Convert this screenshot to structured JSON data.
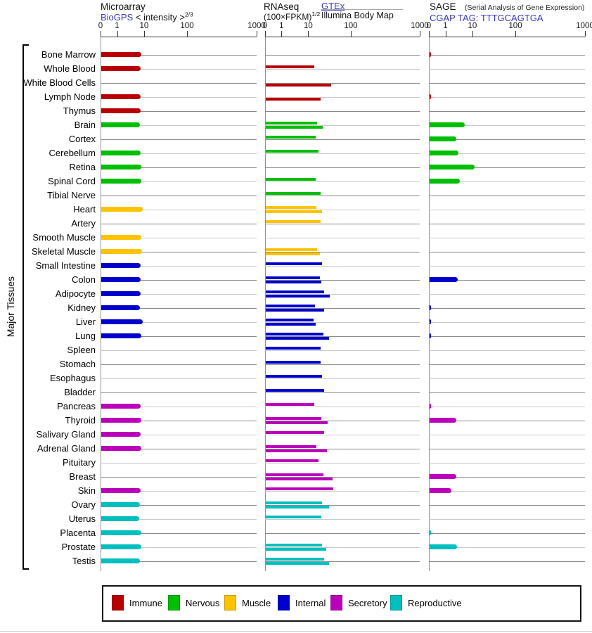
{
  "header": {
    "microarray": {
      "title": "Microarray",
      "source": "BioGPS",
      "scale": " < intensity >",
      "scale_exp": "2/3"
    },
    "rnaseq": {
      "title": "RNAseq",
      "scale": "(100×FPKM)",
      "scale_exp": "1/2",
      "source_top": "GTEx",
      "source_bottom": "Illumina Body Map"
    },
    "sage": {
      "title": "SAGE",
      "subtitle": "(Serial Analysis of Gene Expression)",
      "source": "CGAP TAG: TTTGCAGTGA"
    }
  },
  "sidebar": {
    "label": "Major Tissues"
  },
  "chart_data": {
    "type": "bar",
    "orientation": "horizontal",
    "scale_note": "nonlinear compressed log scale, identical ticks per panel",
    "panels": [
      {
        "id": "microarray",
        "label": "Microarray",
        "source": "BioGPS",
        "ticks": [
          "0",
          "1",
          "10",
          "100",
          "1000"
        ]
      },
      {
        "id": "rnaseq",
        "label": "RNAseq",
        "series": [
          "GTEx",
          "Illumina Body Map"
        ],
        "ticks": [
          "0",
          "1",
          "10",
          "100",
          "1000"
        ]
      },
      {
        "id": "sage",
        "label": "SAGE",
        "source": "CGAP TAG: TTTGCAGTGA",
        "ticks": [
          "0",
          "1",
          "10",
          "100",
          "1000"
        ]
      }
    ],
    "legend": [
      {
        "label": "Immune",
        "color": "#b80000"
      },
      {
        "label": "Nervous",
        "color": "#00bf00"
      },
      {
        "label": "Muscle",
        "color": "#fdc300"
      },
      {
        "label": "Internal",
        "color": "#0000cc"
      },
      {
        "label": "Secretory",
        "color": "#bb00bb"
      },
      {
        "label": "Reproductive",
        "color": "#00bfbf"
      }
    ],
    "rows": [
      {
        "tissue": "Bone Marrow",
        "group": "Immune",
        "microarray": 7.5,
        "rnaseq_gtex": null,
        "rnaseq_illumina": null,
        "sage": 0.1
      },
      {
        "tissue": "Whole Blood",
        "group": "Immune",
        "microarray": 7.0,
        "rnaseq_gtex": 13.5,
        "rnaseq_illumina": null,
        "sage": null
      },
      {
        "tissue": "White Blood Cells",
        "group": "Immune",
        "microarray": null,
        "rnaseq_gtex": null,
        "rnaseq_illumina": 33,
        "sage": null
      },
      {
        "tissue": "Lymph Node",
        "group": "Immune",
        "microarray": 6.8,
        "rnaseq_gtex": null,
        "rnaseq_illumina": 19,
        "sage": 0.1
      },
      {
        "tissue": "Thymus",
        "group": "Immune",
        "microarray": 6.8,
        "rnaseq_gtex": null,
        "rnaseq_illumina": null,
        "sage": null
      },
      {
        "tissue": "Brain",
        "group": "Nervous",
        "microarray": 6.4,
        "rnaseq_gtex": 15.5,
        "rnaseq_illumina": 21,
        "sage": 4.9
      },
      {
        "tissue": "Cortex",
        "group": "Nervous",
        "microarray": null,
        "rnaseq_gtex": 14.5,
        "rnaseq_illumina": null,
        "sage": 2.4
      },
      {
        "tissue": "Cerebellum",
        "group": "Nervous",
        "microarray": 7.0,
        "rnaseq_gtex": 16.5,
        "rnaseq_illumina": null,
        "sage": 2.9
      },
      {
        "tissue": "Retina",
        "group": "Nervous",
        "microarray": 7.5,
        "rnaseq_gtex": null,
        "rnaseq_illumina": null,
        "sage": 10.8
      },
      {
        "tissue": "Spinal Cord",
        "group": "Nervous",
        "microarray": 7.2,
        "rnaseq_gtex": 14.5,
        "rnaseq_illumina": null,
        "sage": 3.2
      },
      {
        "tissue": "Tibial Nerve",
        "group": "Nervous",
        "microarray": null,
        "rnaseq_gtex": 19,
        "rnaseq_illumina": null,
        "sage": null
      },
      {
        "tissue": "Heart",
        "group": "Muscle",
        "microarray": 8.2,
        "rnaseq_gtex": 15,
        "rnaseq_illumina": 20,
        "sage": null
      },
      {
        "tissue": "Artery",
        "group": "Muscle",
        "microarray": null,
        "rnaseq_gtex": 19,
        "rnaseq_illumina": null,
        "sage": null
      },
      {
        "tissue": "Smooth Muscle",
        "group": "Muscle",
        "microarray": 7.2,
        "rnaseq_gtex": null,
        "rnaseq_illumina": null,
        "sage": null
      },
      {
        "tissue": "Skeletal Muscle",
        "group": "Muscle",
        "microarray": 8.0,
        "rnaseq_gtex": 15.5,
        "rnaseq_illumina": 18,
        "sage": null
      },
      {
        "tissue": "Small Intestine",
        "group": "Internal",
        "microarray": 7.0,
        "rnaseq_gtex": 20,
        "rnaseq_illumina": null,
        "sage": null
      },
      {
        "tissue": "Colon",
        "group": "Internal",
        "microarray": 7.1,
        "rnaseq_gtex": 18,
        "rnaseq_illumina": 19.5,
        "sage": 2.7
      },
      {
        "tissue": "Adipocyte",
        "group": "Internal",
        "microarray": 7.0,
        "rnaseq_gtex": 23,
        "rnaseq_illumina": 31,
        "sage": null
      },
      {
        "tissue": "Kidney",
        "group": "Internal",
        "microarray": 6.6,
        "rnaseq_gtex": 14,
        "rnaseq_illumina": 23,
        "sage": 0.1
      },
      {
        "tissue": "Liver",
        "group": "Internal",
        "microarray": 8.5,
        "rnaseq_gtex": 13,
        "rnaseq_illumina": 14.5,
        "sage": 0.1
      },
      {
        "tissue": "Lung",
        "group": "Internal",
        "microarray": 7.2,
        "rnaseq_gtex": 22,
        "rnaseq_illumina": 30,
        "sage": 0.1
      },
      {
        "tissue": "Spleen",
        "group": "Internal",
        "microarray": null,
        "rnaseq_gtex": 19,
        "rnaseq_illumina": null,
        "sage": null
      },
      {
        "tissue": "Stomach",
        "group": "Internal",
        "microarray": null,
        "rnaseq_gtex": 19,
        "rnaseq_illumina": null,
        "sage": null
      },
      {
        "tissue": "Esophagus",
        "group": "Internal",
        "microarray": null,
        "rnaseq_gtex": 20,
        "rnaseq_illumina": null,
        "sage": null
      },
      {
        "tissue": "Bladder",
        "group": "Internal",
        "microarray": null,
        "rnaseq_gtex": 23,
        "rnaseq_illumina": null,
        "sage": null
      },
      {
        "tissue": "Pancreas",
        "group": "Secretory",
        "microarray": 6.8,
        "rnaseq_gtex": 13.5,
        "rnaseq_illumina": null,
        "sage": 0.1
      },
      {
        "tissue": "Thyroid",
        "group": "Secretory",
        "microarray": 7.5,
        "rnaseq_gtex": 19.5,
        "rnaseq_illumina": 27,
        "sage": 2.4
      },
      {
        "tissue": "Salivary Gland",
        "group": "Secretory",
        "microarray": 7.0,
        "rnaseq_gtex": 23,
        "rnaseq_illumina": null,
        "sage": null
      },
      {
        "tissue": "Adrenal Gland",
        "group": "Secretory",
        "microarray": 7.2,
        "rnaseq_gtex": 15,
        "rnaseq_illumina": 26,
        "sage": null
      },
      {
        "tissue": "Pituitary",
        "group": "Secretory",
        "microarray": null,
        "rnaseq_gtex": 16.5,
        "rnaseq_illumina": null,
        "sage": null
      },
      {
        "tissue": "Breast",
        "group": "Secretory",
        "microarray": null,
        "rnaseq_gtex": 22,
        "rnaseq_illumina": 36,
        "sage": 2.4
      },
      {
        "tissue": "Skin",
        "group": "Secretory",
        "microarray": 6.8,
        "rnaseq_gtex": 37,
        "rnaseq_illumina": null,
        "sage": 1.6
      },
      {
        "tissue": "Ovary",
        "group": "Reproductive",
        "microarray": 6.4,
        "rnaseq_gtex": 20,
        "rnaseq_illumina": 30,
        "sage": null
      },
      {
        "tissue": "Uterus",
        "group": "Reproductive",
        "microarray": 6.3,
        "rnaseq_gtex": 19.5,
        "rnaseq_illumina": null,
        "sage": null
      },
      {
        "tissue": "Placenta",
        "group": "Reproductive",
        "microarray": 7.5,
        "rnaseq_gtex": null,
        "rnaseq_illumina": null,
        "sage": 0.1
      },
      {
        "tissue": "Prostate",
        "group": "Reproductive",
        "microarray": 7.3,
        "rnaseq_gtex": 20,
        "rnaseq_illumina": 25,
        "sage": 2.5
      },
      {
        "tissue": "Testis",
        "group": "Reproductive",
        "microarray": 6.6,
        "rnaseq_gtex": 23,
        "rnaseq_illumina": 30,
        "sage": null
      }
    ]
  }
}
